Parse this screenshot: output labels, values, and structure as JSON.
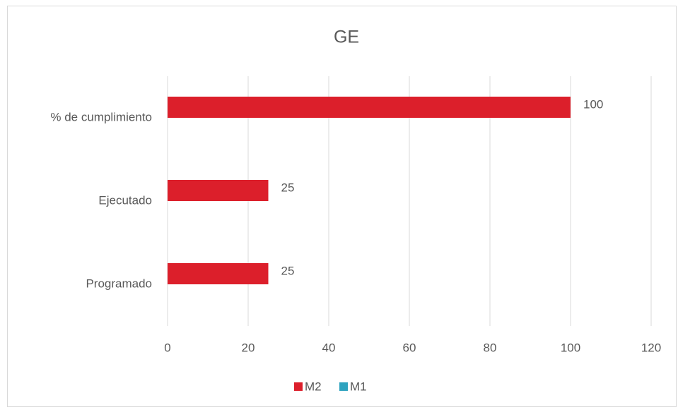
{
  "chart_data": {
    "type": "hbar",
    "title": "GE",
    "categories": [
      "% de cumplimiento",
      "Ejecutado",
      "Programado"
    ],
    "series": [
      {
        "name": "M2",
        "color": "#dc1f2b",
        "values": [
          100,
          25,
          25
        ]
      },
      {
        "name": "M1",
        "color": "#2ea3bf",
        "values": [
          null,
          null,
          null
        ]
      }
    ],
    "xlim": [
      0,
      120
    ],
    "xticks": [
      0,
      20,
      40,
      60,
      80,
      100,
      120
    ],
    "grid": true,
    "legend": "bottom"
  }
}
